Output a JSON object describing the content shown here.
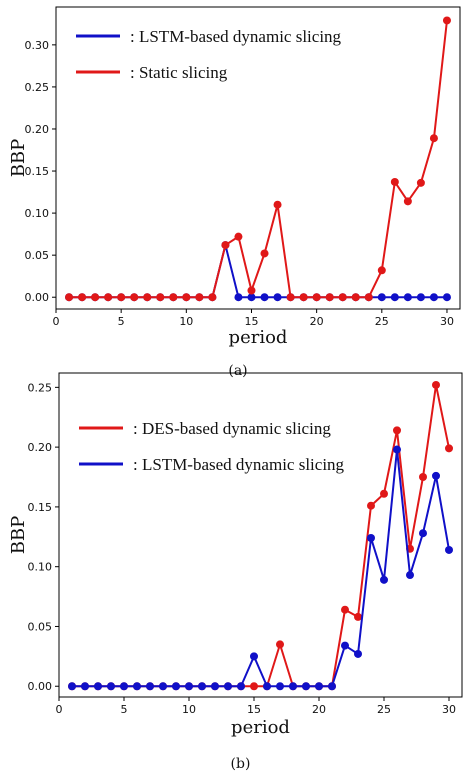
{
  "chart_data": [
    {
      "type": "line",
      "panel_label": "(a)",
      "xlabel": "period",
      "ylabel": "BBP",
      "xlim": [
        0,
        31
      ],
      "ylim": [
        -0.014,
        0.345
      ],
      "xticks": [
        0,
        5,
        10,
        15,
        20,
        25,
        30
      ],
      "yticks": [
        0.0,
        0.05,
        0.1,
        0.15,
        0.2,
        0.25,
        0.3
      ],
      "ytick_labels": [
        "0.00",
        "0.05",
        "0.10",
        "0.15",
        "0.20",
        "0.25",
        "0.30"
      ],
      "legend_position": "top-left",
      "grid": false,
      "x": [
        1,
        2,
        3,
        4,
        5,
        6,
        7,
        8,
        9,
        10,
        11,
        12,
        13,
        14,
        15,
        16,
        17,
        18,
        19,
        20,
        21,
        22,
        23,
        24,
        25,
        26,
        27,
        28,
        29,
        30
      ],
      "series": [
        {
          "name": "LSTM-based dynamic slicing",
          "legend_text": ":  LSTM-based dynamic slicing",
          "color": "#1010c8",
          "values": [
            0,
            0,
            0,
            0,
            0,
            0,
            0,
            0,
            0,
            0,
            0,
            0,
            0.062,
            0,
            0,
            0,
            0,
            0,
            0,
            0,
            0,
            0,
            0,
            0,
            0,
            0,
            0,
            0,
            0,
            0
          ]
        },
        {
          "name": "Static slicing",
          "legend_text": ":  Static slicing",
          "color": "#e01818",
          "values": [
            0,
            0,
            0,
            0,
            0,
            0,
            0,
            0,
            0,
            0,
            0,
            0,
            0.062,
            0.072,
            0.008,
            0.052,
            0.11,
            0,
            0,
            0,
            0,
            0,
            0,
            0,
            0.032,
            0.137,
            0.114,
            0.136,
            0.189,
            0.329
          ]
        }
      ]
    },
    {
      "type": "line",
      "panel_label": "(b)",
      "xlabel": "period",
      "ylabel": "BBP",
      "xlim": [
        0,
        31
      ],
      "ylim": [
        -0.009,
        0.262
      ],
      "xticks": [
        0,
        5,
        10,
        15,
        20,
        25,
        30
      ],
      "yticks": [
        0.0,
        0.05,
        0.1,
        0.15,
        0.2,
        0.25
      ],
      "ytick_labels": [
        "0.00",
        "0.05",
        "0.10",
        "0.15",
        "0.20",
        "0.25"
      ],
      "legend_position": "top-left",
      "grid": false,
      "x": [
        1,
        2,
        3,
        4,
        5,
        6,
        7,
        8,
        9,
        10,
        11,
        12,
        13,
        14,
        15,
        16,
        17,
        18,
        19,
        20,
        21,
        22,
        23,
        24,
        25,
        26,
        27,
        28,
        29,
        30
      ],
      "series": [
        {
          "name": "DES-based dynamic slicing",
          "legend_text": ":  DES-based dynamic slicing",
          "color": "#e01818",
          "values": [
            0,
            0,
            0,
            0,
            0,
            0,
            0,
            0,
            0,
            0,
            0,
            0,
            0,
            0,
            0,
            0,
            0.035,
            0,
            0,
            0,
            0,
            0.064,
            0.058,
            0.151,
            0.161,
            0.214,
            0.115,
            0.175,
            0.252,
            0.199
          ]
        },
        {
          "name": "LSTM-based dynamic slicing",
          "legend_text": ":  LSTM-based dynamic slicing",
          "color": "#1010c8",
          "values": [
            0,
            0,
            0,
            0,
            0,
            0,
            0,
            0,
            0,
            0,
            0,
            0,
            0,
            0,
            0.025,
            0,
            0,
            0,
            0,
            0,
            0,
            0.034,
            0.027,
            0.124,
            0.089,
            0.198,
            0.093,
            0.128,
            0.176,
            0.114
          ]
        }
      ]
    }
  ]
}
